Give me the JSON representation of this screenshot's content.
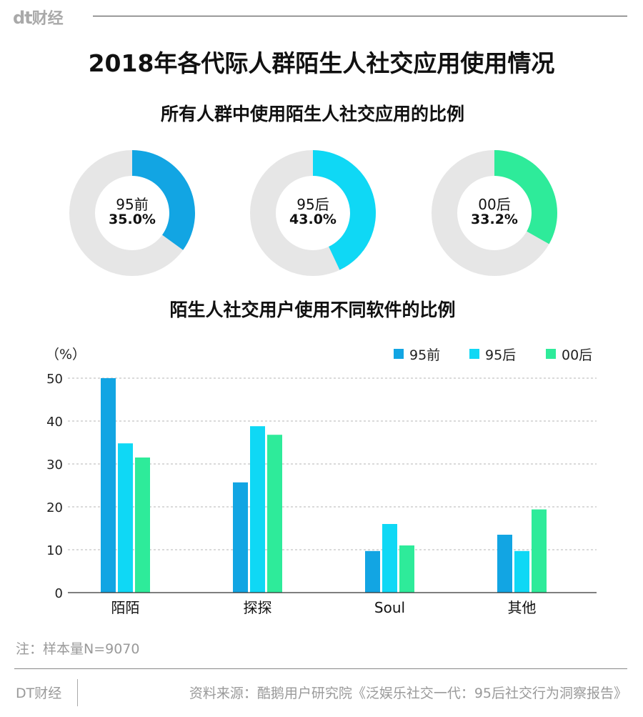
{
  "header": {
    "logo_mark": "dt",
    "logo_text": "财经"
  },
  "title": "2018年各代际人群陌生人社交应用使用情况",
  "donut_section": {
    "title": "所有人群中使用陌生人社交应用的比例",
    "items": [
      {
        "label": "95前",
        "value_text": "35.0%",
        "value": 35.0,
        "color": "#12A5E3"
      },
      {
        "label": "95后",
        "value_text": "43.0%",
        "value": 43.0,
        "color": "#0FD8F5"
      },
      {
        "label": "00后",
        "value_text": "33.2%",
        "value": 33.2,
        "color": "#2EEB9A"
      }
    ],
    "track_color": "#E6E6E6"
  },
  "bar_section": {
    "title": "陌生人社交用户使用不同软件的比例"
  },
  "chart_data": [
    {
      "type": "pie",
      "title": "所有人群中使用陌生人社交应用的比例",
      "categories": [
        "95前",
        "95后",
        "00后"
      ],
      "values": [
        35.0,
        43.0,
        33.2
      ]
    },
    {
      "type": "bar",
      "title": "陌生人社交用户使用不同软件的比例",
      "ylabel": "（%）",
      "categories": [
        "陌陌",
        "探探",
        "Soul",
        "其他"
      ],
      "series": [
        {
          "name": "95前",
          "values": [
            50,
            25.7,
            9.7,
            13.5
          ],
          "color": "#12A5E3"
        },
        {
          "name": "95后",
          "values": [
            34.8,
            38.8,
            16,
            9.7
          ],
          "color": "#0FD8F5"
        },
        {
          "name": "00后",
          "values": [
            31.5,
            36.8,
            11,
            19.4
          ],
          "color": "#2EEB9A"
        }
      ],
      "yticks": [
        "0",
        "10",
        "20",
        "30",
        "40",
        "50"
      ],
      "ylim": [
        0,
        50
      ],
      "grid": true,
      "legend": "top-right"
    }
  ],
  "footer": {
    "note": "注：样本量N=9070",
    "brand": "DT财经",
    "source": "资料来源：酷鹅用户研究院《泛娱乐社交一代：95后社交行为洞察报告》"
  }
}
